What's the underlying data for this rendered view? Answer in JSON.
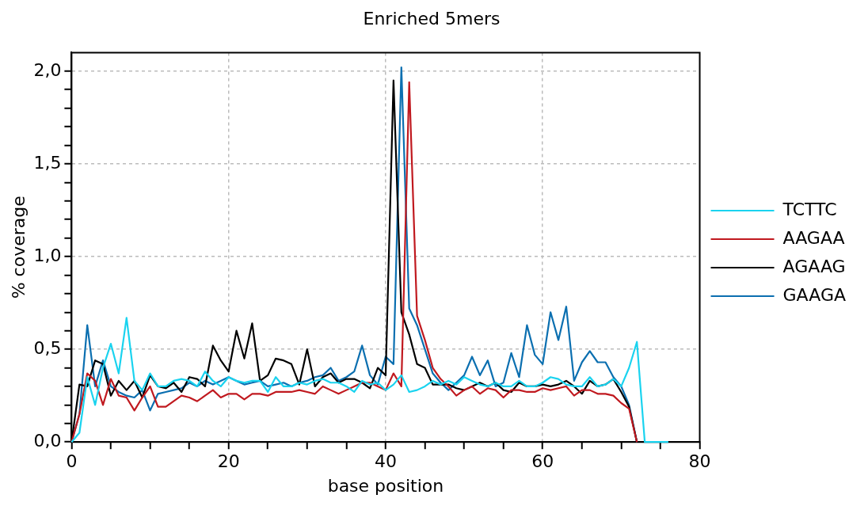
{
  "chart_data": {
    "type": "line",
    "title": "Enriched 5mers",
    "xlabel": "base position",
    "ylabel": "% coverage",
    "xlim": [
      0,
      80
    ],
    "xticks": [
      0,
      {
        "value": 5,
        "label": null
      },
      {
        "value": 10,
        "label": null
      },
      {
        "value": 15,
        "label": null
      },
      20,
      {
        "value": 25,
        "label": null
      },
      {
        "value": 30,
        "label": null
      },
      {
        "value": 35,
        "label": null
      },
      40,
      {
        "value": 45,
        "label": null
      },
      {
        "value": 50,
        "label": null
      },
      {
        "value": 55,
        "label": null
      },
      60,
      {
        "value": 65,
        "label": null
      },
      {
        "value": 70,
        "label": null
      },
      {
        "value": 75,
        "label": null
      },
      80
    ],
    "ylim": [
      0,
      2.1
    ],
    "yticks": [
      {
        "value": 0,
        "label": "0,0"
      },
      {
        "value": 0.1,
        "label": null
      },
      {
        "value": 0.2,
        "label": null
      },
      {
        "value": 0.3,
        "label": null
      },
      {
        "value": 0.4,
        "label": null
      },
      {
        "value": 0.5,
        "label": "0,5"
      },
      {
        "value": 0.6,
        "label": null
      },
      {
        "value": 0.7,
        "label": null
      },
      {
        "value": 0.8,
        "label": null
      },
      {
        "value": 0.9,
        "label": null
      },
      {
        "value": 1.0,
        "label": "1,0"
      },
      {
        "value": 1.1,
        "label": null
      },
      {
        "value": 1.2,
        "label": null
      },
      {
        "value": 1.3,
        "label": null
      },
      {
        "value": 1.4,
        "label": null
      },
      {
        "value": 1.5,
        "label": "1,5"
      },
      {
        "value": 1.6,
        "label": null
      },
      {
        "value": 1.7,
        "label": null
      },
      {
        "value": 1.8,
        "label": null
      },
      {
        "value": 1.9,
        "label": null
      },
      {
        "value": 2.0,
        "label": "2,0"
      }
    ],
    "grid": true,
    "legend": "right",
    "line_style": "solid",
    "marker": "none",
    "series": [
      {
        "name": "TCTTC",
        "color": "#1ad3ef",
        "x": [
          0,
          1,
          2,
          3,
          4,
          5,
          6,
          7,
          8,
          9,
          10,
          11,
          12,
          13,
          14,
          15,
          16,
          17,
          18,
          19,
          20,
          21,
          22,
          23,
          24,
          25,
          26,
          27,
          28,
          29,
          30,
          31,
          32,
          33,
          34,
          35,
          36,
          37,
          38,
          39,
          40,
          41,
          42,
          43,
          44,
          45,
          46,
          47,
          48,
          49,
          50,
          51,
          52,
          53,
          54,
          55,
          56,
          57,
          58,
          59,
          60,
          61,
          62,
          63,
          64,
          65,
          66,
          67,
          68,
          69,
          70,
          71,
          72,
          73,
          74,
          75,
          76
        ],
        "values": [
          0,
          0.05,
          0.35,
          0.2,
          0.4,
          0.53,
          0.37,
          0.67,
          0.33,
          0.28,
          0.37,
          0.3,
          0.3,
          0.33,
          0.34,
          0.33,
          0.3,
          0.38,
          0.33,
          0.3,
          0.35,
          0.33,
          0.32,
          0.33,
          0.33,
          0.27,
          0.35,
          0.3,
          0.3,
          0.32,
          0.31,
          0.33,
          0.34,
          0.32,
          0.32,
          0.3,
          0.27,
          0.33,
          0.31,
          0.32,
          0.28,
          0.31,
          0.36,
          0.27,
          0.28,
          0.3,
          0.33,
          0.31,
          0.33,
          0.31,
          0.35,
          0.33,
          0.31,
          0.3,
          0.32,
          0.3,
          0.3,
          0.33,
          0.3,
          0.3,
          0.32,
          0.35,
          0.34,
          0.31,
          0.3,
          0.3,
          0.35,
          0.3,
          0.31,
          0.34,
          0.3,
          0.4,
          0.54,
          0,
          0,
          0,
          0
        ]
      },
      {
        "name": "AAGAA",
        "color": "#c0191f",
        "x": [
          0,
          1,
          2,
          3,
          4,
          5,
          6,
          7,
          8,
          9,
          10,
          11,
          12,
          13,
          14,
          15,
          16,
          17,
          18,
          19,
          20,
          21,
          22,
          23,
          24,
          25,
          26,
          27,
          28,
          29,
          30,
          31,
          32,
          33,
          34,
          35,
          36,
          37,
          38,
          39,
          40,
          41,
          42,
          43,
          44,
          45,
          46,
          47,
          48,
          49,
          50,
          51,
          52,
          53,
          54,
          55,
          56,
          57,
          58,
          59,
          60,
          61,
          62,
          63,
          64,
          65,
          66,
          67,
          68,
          69,
          70,
          71,
          72
        ],
        "values": [
          0,
          0.15,
          0.37,
          0.33,
          0.2,
          0.34,
          0.25,
          0.24,
          0.17,
          0.24,
          0.3,
          0.19,
          0.19,
          0.22,
          0.25,
          0.24,
          0.22,
          0.25,
          0.28,
          0.24,
          0.26,
          0.26,
          0.23,
          0.26,
          0.26,
          0.25,
          0.27,
          0.27,
          0.27,
          0.28,
          0.27,
          0.26,
          0.3,
          0.28,
          0.26,
          0.28,
          0.3,
          0.32,
          0.32,
          0.3,
          0.28,
          0.37,
          0.3,
          1.94,
          0.68,
          0.55,
          0.4,
          0.34,
          0.3,
          0.25,
          0.28,
          0.3,
          0.26,
          0.29,
          0.28,
          0.24,
          0.28,
          0.28,
          0.27,
          0.27,
          0.29,
          0.28,
          0.29,
          0.3,
          0.25,
          0.28,
          0.28,
          0.26,
          0.26,
          0.25,
          0.21,
          0.18,
          0
        ]
      },
      {
        "name": "AGAAG",
        "color": "#000000",
        "x": [
          0,
          1,
          2,
          3,
          4,
          5,
          6,
          7,
          8,
          9,
          10,
          11,
          12,
          13,
          14,
          15,
          16,
          17,
          18,
          19,
          20,
          21,
          22,
          23,
          24,
          25,
          26,
          27,
          28,
          29,
          30,
          31,
          32,
          33,
          34,
          35,
          36,
          37,
          38,
          39,
          40,
          41,
          42,
          43,
          44,
          45,
          46,
          47,
          48,
          49,
          50,
          51,
          52,
          53,
          54,
          55,
          56,
          57,
          58,
          59,
          60,
          61,
          62,
          63,
          64,
          65,
          66,
          67,
          68,
          69,
          70,
          71,
          72
        ],
        "values": [
          0,
          0.31,
          0.3,
          0.44,
          0.42,
          0.25,
          0.33,
          0.28,
          0.33,
          0.24,
          0.36,
          0.3,
          0.29,
          0.32,
          0.27,
          0.35,
          0.34,
          0.3,
          0.52,
          0.44,
          0.38,
          0.6,
          0.45,
          0.64,
          0.33,
          0.36,
          0.45,
          0.44,
          0.42,
          0.31,
          0.5,
          0.3,
          0.35,
          0.37,
          0.32,
          0.34,
          0.34,
          0.32,
          0.29,
          0.4,
          0.36,
          1.95,
          0.7,
          0.58,
          0.42,
          0.4,
          0.31,
          0.31,
          0.31,
          0.29,
          0.28,
          0.3,
          0.32,
          0.3,
          0.32,
          0.28,
          0.27,
          0.32,
          0.3,
          0.3,
          0.31,
          0.3,
          0.31,
          0.33,
          0.3,
          0.26,
          0.33,
          0.3,
          0.31,
          0.34,
          0.27,
          0.19,
          0
        ]
      },
      {
        "name": "GAAGA",
        "color": "#0b6fb0",
        "x": [
          0,
          1,
          2,
          3,
          4,
          5,
          6,
          7,
          8,
          9,
          10,
          11,
          12,
          13,
          14,
          15,
          16,
          17,
          18,
          19,
          20,
          21,
          22,
          23,
          24,
          25,
          26,
          27,
          28,
          29,
          30,
          31,
          32,
          33,
          34,
          35,
          36,
          37,
          38,
          39,
          40,
          41,
          42,
          43,
          44,
          45,
          46,
          47,
          48,
          49,
          50,
          51,
          52,
          53,
          54,
          55,
          56,
          57,
          58,
          59,
          60,
          61,
          62,
          63,
          64,
          65,
          66,
          67,
          68,
          69,
          70,
          71,
          72
        ],
        "values": [
          0,
          0.15,
          0.63,
          0.3,
          0.44,
          0.3,
          0.27,
          0.25,
          0.24,
          0.28,
          0.17,
          0.26,
          0.27,
          0.28,
          0.29,
          0.32,
          0.3,
          0.33,
          0.31,
          0.33,
          0.35,
          0.33,
          0.31,
          0.32,
          0.33,
          0.3,
          0.31,
          0.32,
          0.3,
          0.32,
          0.33,
          0.35,
          0.36,
          0.4,
          0.33,
          0.35,
          0.38,
          0.52,
          0.36,
          0.31,
          0.46,
          0.42,
          2.02,
          0.72,
          0.63,
          0.5,
          0.37,
          0.32,
          0.28,
          0.32,
          0.36,
          0.46,
          0.36,
          0.44,
          0.3,
          0.32,
          0.48,
          0.35,
          0.63,
          0.47,
          0.42,
          0.7,
          0.55,
          0.73,
          0.33,
          0.43,
          0.49,
          0.43,
          0.43,
          0.35,
          0.3,
          0.2,
          0
        ]
      }
    ]
  }
}
